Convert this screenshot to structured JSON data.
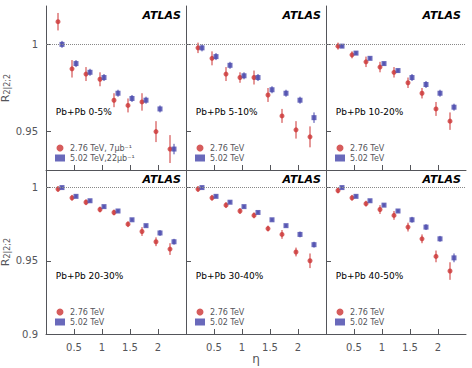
{
  "chart_data": [
    {
      "type": "scatter",
      "x": [
        0.25,
        0.5,
        0.75,
        1.0,
        1.25,
        1.5,
        1.75,
        2.0,
        2.25
      ],
      "series": [
        {
          "name": "2.76 TeV, 7μb⁻¹",
          "color": "#cc3333",
          "marker": "circle",
          "values": [
            1.013,
            0.986,
            0.983,
            0.98,
            0.968,
            0.965,
            0.967,
            0.95,
            0.94
          ],
          "errors": [
            0.005,
            0.005,
            0.004,
            0.004,
            0.004,
            0.004,
            0.005,
            0.006,
            0.008
          ]
        },
        {
          "name": "5.02 TeV,22μb⁻¹",
          "color": "#4444aa",
          "marker": "square",
          "values": [
            1.0,
            0.989,
            0.984,
            0.981,
            0.972,
            0.969,
            0.968,
            0.963,
            0.94
          ],
          "errors": [
            0.002,
            0.002,
            0.002,
            0.002,
            0.002,
            0.002,
            0.002,
            0.002,
            0.003
          ]
        }
      ],
      "annotations": [
        "ATLAS",
        "Pb+Pb 0-5%"
      ],
      "ylabel": "R2|2;2",
      "xlim": [
        0.0,
        2.5
      ],
      "xticks": [
        0.5,
        1,
        1.5,
        2
      ],
      "ylim": [
        0.928,
        1.022
      ],
      "yticks": [
        0.95,
        1
      ],
      "reference_y": 1.0,
      "grid": false,
      "legend": "lower left",
      "tick_labels": "y"
    },
    {
      "type": "scatter",
      "x": [
        0.25,
        0.5,
        0.75,
        1.0,
        1.25,
        1.5,
        1.75,
        2.0,
        2.25
      ],
      "series": [
        {
          "name": "2.76 TeV",
          "color": "#cc3333",
          "marker": "circle",
          "values": [
            0.998,
            0.992,
            0.983,
            0.981,
            0.981,
            0.971,
            0.959,
            0.951,
            0.947
          ],
          "errors": [
            0.003,
            0.004,
            0.004,
            0.003,
            0.004,
            0.004,
            0.004,
            0.005,
            0.006
          ]
        },
        {
          "name": "5.02 TeV",
          "color": "#4444aa",
          "marker": "square",
          "values": [
            0.998,
            0.993,
            0.988,
            0.982,
            0.981,
            0.974,
            0.972,
            0.968,
            0.958
          ],
          "errors": [
            0.002,
            0.002,
            0.002,
            0.002,
            0.002,
            0.002,
            0.002,
            0.002,
            0.003
          ]
        }
      ],
      "annotations": [
        "ATLAS",
        "Pb+Pb 5-10%"
      ],
      "xlim": [
        0.0,
        2.5
      ],
      "xticks": [
        0.5,
        1,
        1.5,
        2
      ],
      "ylim": [
        0.928,
        1.022
      ],
      "yticks": [
        0.95,
        1
      ],
      "reference_y": 1.0,
      "grid": false,
      "legend": "lower left",
      "tick_labels": false
    },
    {
      "type": "scatter",
      "x": [
        0.25,
        0.5,
        0.75,
        1.0,
        1.25,
        1.5,
        1.75,
        2.0,
        2.25
      ],
      "series": [
        {
          "name": "2.76 TeV",
          "color": "#cc3333",
          "marker": "circle",
          "values": [
            0.999,
            0.994,
            0.99,
            0.987,
            0.984,
            0.978,
            0.972,
            0.963,
            0.956
          ],
          "errors": [
            0.002,
            0.002,
            0.003,
            0.003,
            0.003,
            0.003,
            0.003,
            0.004,
            0.005
          ]
        },
        {
          "name": "5.02 TeV",
          "color": "#4444aa",
          "marker": "square",
          "values": [
            0.999,
            0.995,
            0.992,
            0.989,
            0.985,
            0.981,
            0.977,
            0.972,
            0.964
          ],
          "errors": [
            0.001,
            0.001,
            0.001,
            0.001,
            0.001,
            0.002,
            0.002,
            0.002,
            0.002
          ]
        }
      ],
      "annotations": [
        "ATLAS",
        "Pb+Pb 10-20%"
      ],
      "xlim": [
        0.0,
        2.5
      ],
      "xticks": [
        0.5,
        1,
        1.5,
        2
      ],
      "ylim": [
        0.928,
        1.022
      ],
      "yticks": [
        0.95,
        1
      ],
      "reference_y": 1.0,
      "grid": false,
      "legend": "lower left",
      "tick_labels": false
    },
    {
      "type": "scatter",
      "x": [
        0.25,
        0.5,
        0.75,
        1.0,
        1.25,
        1.5,
        1.75,
        2.0,
        2.25
      ],
      "series": [
        {
          "name": "2.76 TeV",
          "color": "#cc3333",
          "marker": "circle",
          "values": [
            0.999,
            0.993,
            0.99,
            0.985,
            0.983,
            0.975,
            0.97,
            0.963,
            0.958
          ],
          "errors": [
            0.002,
            0.002,
            0.002,
            0.002,
            0.002,
            0.002,
            0.003,
            0.003,
            0.004
          ]
        },
        {
          "name": "5.02 TeV",
          "color": "#4444aa",
          "marker": "square",
          "values": [
            1.0,
            0.994,
            0.991,
            0.987,
            0.984,
            0.978,
            0.974,
            0.969,
            0.963
          ],
          "errors": [
            0.001,
            0.001,
            0.001,
            0.001,
            0.001,
            0.001,
            0.001,
            0.002,
            0.002
          ]
        }
      ],
      "annotations": [
        "ATLAS",
        "Pb+Pb 20-30%"
      ],
      "ylabel": "R2|2;2",
      "xlim": [
        0.0,
        2.5
      ],
      "xticks": [
        0.5,
        1,
        1.5,
        2
      ],
      "ylim": [
        0.9,
        1.012
      ],
      "yticks": [
        0.9,
        0.95,
        1
      ],
      "reference_y": 1.0,
      "grid": false,
      "legend": "lower left",
      "tick_labels": true
    },
    {
      "type": "scatter",
      "x": [
        0.25,
        0.5,
        0.75,
        1.0,
        1.25,
        1.5,
        1.75,
        2.0,
        2.25
      ],
      "series": [
        {
          "name": "2.76 TeV",
          "color": "#cc3333",
          "marker": "circle",
          "values": [
            0.999,
            0.993,
            0.988,
            0.984,
            0.981,
            0.972,
            0.968,
            0.956,
            0.95
          ],
          "errors": [
            0.002,
            0.002,
            0.002,
            0.002,
            0.002,
            0.002,
            0.003,
            0.003,
            0.005
          ]
        },
        {
          "name": "5.02 TeV",
          "color": "#4444aa",
          "marker": "square",
          "values": [
            1.0,
            0.994,
            0.99,
            0.987,
            0.983,
            0.978,
            0.974,
            0.968,
            0.961
          ],
          "errors": [
            0.001,
            0.001,
            0.001,
            0.001,
            0.001,
            0.001,
            0.001,
            0.002,
            0.002
          ]
        }
      ],
      "annotations": [
        "ATLAS",
        "Pb+Pb 30-40%"
      ],
      "xlabel": "η",
      "xlim": [
        0.0,
        2.5
      ],
      "xticks": [
        0.5,
        1,
        1.5,
        2
      ],
      "ylim": [
        0.9,
        1.012
      ],
      "yticks": [
        0.9,
        0.95,
        1
      ],
      "reference_y": 1.0,
      "grid": false,
      "legend": "lower left",
      "tick_labels": "x"
    },
    {
      "type": "scatter",
      "x": [
        0.25,
        0.5,
        0.75,
        1.0,
        1.25,
        1.5,
        1.75,
        2.0,
        2.25
      ],
      "series": [
        {
          "name": "2.76 TeV",
          "color": "#cc3333",
          "marker": "circle",
          "values": [
            0.998,
            0.993,
            0.989,
            0.985,
            0.981,
            0.973,
            0.965,
            0.953,
            0.943
          ],
          "errors": [
            0.002,
            0.002,
            0.002,
            0.003,
            0.003,
            0.003,
            0.003,
            0.004,
            0.006
          ]
        },
        {
          "name": "5.02 TeV",
          "color": "#4444aa",
          "marker": "square",
          "values": [
            1.0,
            0.994,
            0.991,
            0.988,
            0.984,
            0.978,
            0.973,
            0.965,
            0.952
          ],
          "errors": [
            0.001,
            0.001,
            0.001,
            0.001,
            0.001,
            0.002,
            0.002,
            0.002,
            0.003
          ]
        }
      ],
      "annotations": [
        "ATLAS",
        "Pb+Pb 40-50%"
      ],
      "xlim": [
        0.0,
        2.5
      ],
      "xticks": [
        0.5,
        1,
        1.5,
        2
      ],
      "ylim": [
        0.9,
        1.012
      ],
      "yticks": [
        0.9,
        0.95,
        1
      ],
      "reference_y": 1.0,
      "grid": false,
      "legend": "lower left",
      "tick_labels": "x"
    }
  ]
}
